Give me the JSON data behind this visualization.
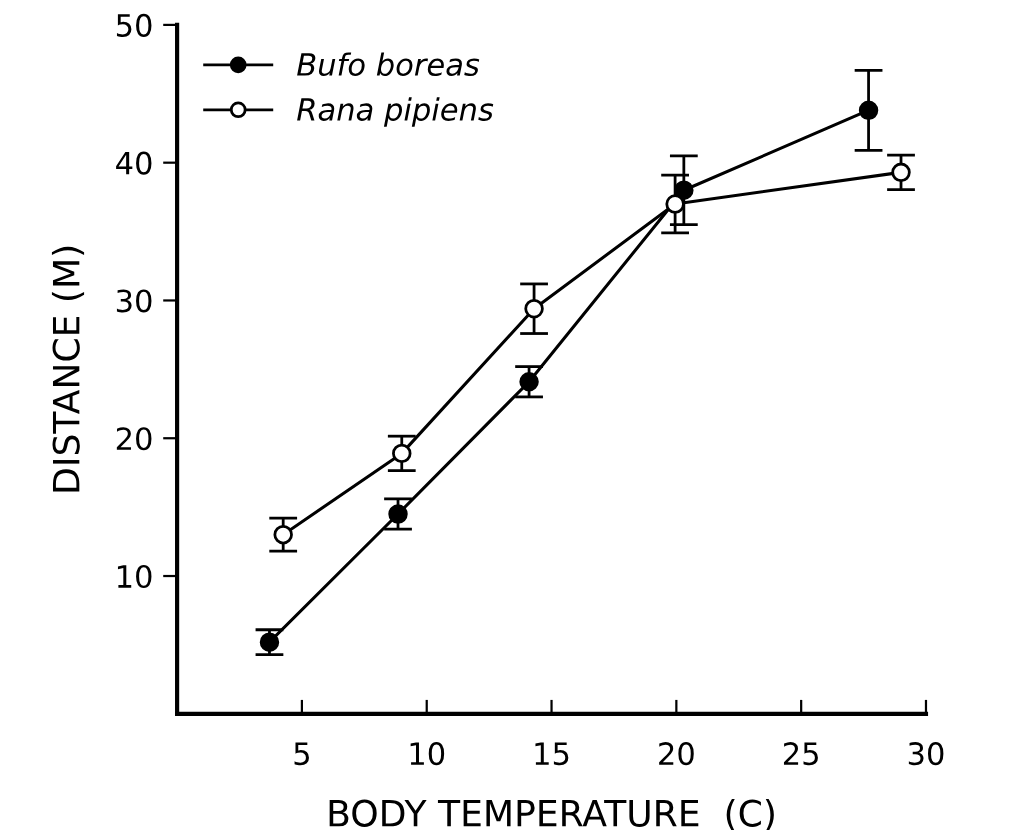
{
  "chart_data": {
    "type": "line",
    "xlabel": "BODY TEMPERATURE  (C)",
    "ylabel": "DISTANCE (M)",
    "xlim": [
      0,
      30
    ],
    "ylim": [
      0,
      50
    ],
    "xticks": [
      5,
      10,
      15,
      20,
      25,
      30
    ],
    "yticks": [
      10,
      20,
      30,
      40,
      50
    ],
    "grid": false,
    "legend": "top left",
    "marker": "circle",
    "line_style": "solid",
    "series": [
      {
        "name": "Bufo boreas",
        "color": "#000000",
        "x": [
          3.7,
          8.85,
          14.1,
          20.3,
          27.7
        ],
        "values": [
          5.2,
          14.5,
          24.1,
          38.0,
          43.8
        ],
        "errors": [
          0.9,
          1.1,
          1.1,
          2.5,
          2.9
        ]
      },
      {
        "name": "Rana pipiens",
        "color": "#000000",
        "x": [
          4.25,
          9.0,
          14.3,
          19.95,
          29.0
        ],
        "values": [
          13.0,
          18.9,
          29.4,
          37.0,
          39.3
        ],
        "errors": [
          1.2,
          1.25,
          1.8,
          2.1,
          1.25
        ]
      }
    ]
  }
}
